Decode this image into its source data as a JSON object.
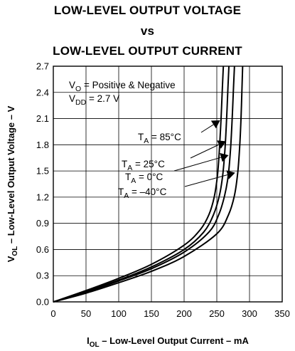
{
  "chart_data": {
    "type": "line",
    "title_lines": [
      "LOW-LEVEL OUTPUT VOLTAGE",
      "vs",
      "LOW-LEVEL OUTPUT CURRENT"
    ],
    "xlabel": {
      "main": "I",
      "sub": "OL",
      "rest": " – Low-Level Output Current – mA"
    },
    "ylabel": {
      "main": "V",
      "sub": "OL",
      "rest": " – Low-Level Output Voltage – V"
    },
    "xlim": [
      0,
      350
    ],
    "ylim": [
      0,
      2.7
    ],
    "xticks": [
      0,
      50,
      100,
      150,
      200,
      250,
      300,
      350
    ],
    "xtick_labels": [
      "0",
      "50",
      "100",
      "150",
      "200",
      "250",
      "300",
      "350"
    ],
    "yticks": [
      0,
      0.3,
      0.6,
      0.9,
      1.2,
      1.5,
      1.8,
      2.1,
      2.4,
      2.7
    ],
    "ytick_labels": [
      "0.0",
      "0.3",
      "0.6",
      "0.9",
      "1.2",
      "1.5",
      "1.8",
      "2.1",
      "2.4",
      "2.7"
    ],
    "grid": true,
    "conditions": [
      {
        "main": "V",
        "sub": "O",
        "rest": " = Positive & Negative"
      },
      {
        "main": "V",
        "sub": "DD",
        "rest": " = 2.7 V"
      }
    ],
    "series": [
      {
        "name": "85°C",
        "label": {
          "main": "T",
          "sub": "A",
          "rest": " = 85°C"
        },
        "x": [
          0,
          50,
          100,
          150,
          200,
          225,
          238,
          246,
          251,
          254,
          256.5,
          258.5,
          260
        ],
        "y": [
          0,
          0.13,
          0.27,
          0.43,
          0.65,
          0.83,
          1.0,
          1.2,
          1.45,
          1.75,
          2.1,
          2.45,
          2.7
        ]
      },
      {
        "name": "25°C",
        "label": {
          "main": "T",
          "sub": "A",
          "rest": " = 25°C"
        },
        "x": [
          0,
          50,
          100,
          150,
          200,
          230,
          245,
          254,
          259,
          262.5,
          265,
          267,
          268.5
        ],
        "y": [
          0,
          0.12,
          0.25,
          0.4,
          0.6,
          0.8,
          1.0,
          1.22,
          1.45,
          1.75,
          2.1,
          2.45,
          2.7
        ]
      },
      {
        "name": "0°C",
        "label": {
          "main": "T",
          "sub": "A",
          "rest": " = 0°C"
        },
        "x": [
          0,
          50,
          100,
          150,
          200,
          238,
          253,
          262,
          267.5,
          271,
          273.5,
          275.5,
          277
        ],
        "y": [
          0,
          0.11,
          0.24,
          0.38,
          0.57,
          0.8,
          1.0,
          1.22,
          1.45,
          1.75,
          2.1,
          2.45,
          2.7
        ]
      },
      {
        "name": "-40°C",
        "label": {
          "main": "T",
          "sub": "A",
          "rest": " = –40°C"
        },
        "x": [
          0,
          50,
          100,
          150,
          200,
          250,
          268,
          277,
          282,
          285,
          287,
          288.5,
          289.5
        ],
        "y": [
          0,
          0.1,
          0.22,
          0.35,
          0.52,
          0.78,
          1.0,
          1.22,
          1.48,
          1.78,
          2.1,
          2.45,
          2.7
        ]
      }
    ],
    "callouts": [
      {
        "series": "85°C",
        "x": 255,
        "y": 2.08
      },
      {
        "series": "25°C",
        "x": 264,
        "y": 1.84
      },
      {
        "series": "0°C",
        "x": 268,
        "y": 1.68
      },
      {
        "series": "-40°C",
        "x": 278,
        "y": 1.48
      }
    ]
  }
}
